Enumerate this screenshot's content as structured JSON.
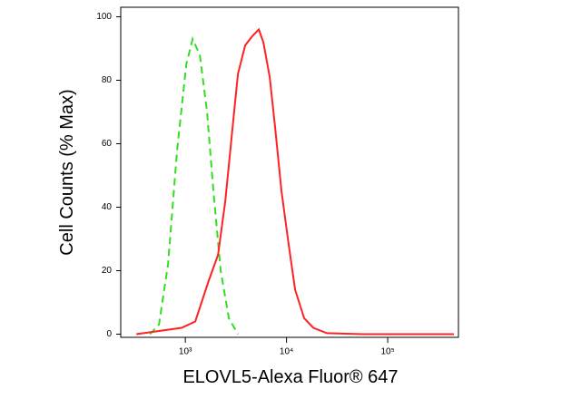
{
  "chart_data": {
    "type": "line",
    "x_label": "ELOVL5-Alexa Fluor® 647",
    "y_label": "Cell Counts (% Max)",
    "xscale": "log",
    "xlim": [
      230,
      500000
    ],
    "ylim": [
      -1,
      103
    ],
    "xticks": [
      {
        "value": 1000,
        "label": "10³"
      },
      {
        "value": 10000,
        "label": "10⁴"
      },
      {
        "value": 100000,
        "label": "10⁵"
      }
    ],
    "yticks": [
      0,
      20,
      40,
      60,
      80,
      100
    ],
    "series": [
      {
        "color": "#33dd22",
        "dashed": true,
        "x": [
          447,
          549,
          675,
          830,
          1021,
          1180,
          1391,
          1641,
          1897,
          2238,
          2693,
          3310
        ],
        "values": [
          0,
          3,
          22,
          58,
          85,
          93,
          88,
          70,
          45,
          20,
          5,
          0
        ]
      },
      {
        "color": "#ff2222",
        "dashed": false,
        "x": [
          328,
          920,
          1255,
          1711,
          2104,
          2482,
          2866,
          3311,
          3908,
          4613,
          5325,
          5902,
          6823,
          7724,
          8926,
          10525,
          12153,
          14955,
          18399,
          25072,
          57230,
          451000
        ],
        "values": [
          0,
          2,
          4,
          17,
          25,
          42,
          62,
          82,
          91,
          94,
          96,
          92,
          81,
          65,
          45,
          28,
          14,
          5,
          2,
          0.3,
          0,
          0
        ]
      }
    ]
  }
}
